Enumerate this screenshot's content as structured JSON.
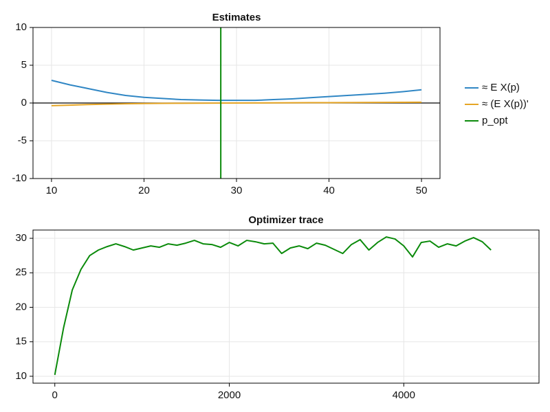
{
  "chart_data": [
    {
      "type": "line",
      "title": "Estimates",
      "x": [
        10,
        12,
        14,
        16,
        18,
        20,
        22,
        24,
        26,
        28,
        30,
        32,
        34,
        36,
        38,
        40,
        42,
        44,
        46,
        48,
        50
      ],
      "series": [
        {
          "name": "≈ E X(p)",
          "color": "#2f86c4",
          "values": [
            3.0,
            2.4,
            1.9,
            1.4,
            1.0,
            0.75,
            0.6,
            0.45,
            0.4,
            0.35,
            0.35,
            0.35,
            0.45,
            0.55,
            0.7,
            0.85,
            1.0,
            1.15,
            1.3,
            1.5,
            1.75
          ]
        },
        {
          "name": "≈ (E X(p))'",
          "color": "#e6a524",
          "values": [
            -0.35,
            -0.28,
            -0.2,
            -0.15,
            -0.1,
            -0.07,
            -0.05,
            -0.03,
            -0.02,
            -0.01,
            0,
            0.01,
            0.02,
            0.03,
            0.04,
            0.05,
            0.06,
            0.07,
            0.08,
            0.09,
            0.1
          ]
        },
        {
          "name": "p_opt",
          "color": "#0a8a0a",
          "xline": 28.3
        }
      ],
      "hline": 0,
      "xlim": [
        8,
        52
      ],
      "ylim": [
        -10,
        10
      ],
      "xticks": [
        10,
        20,
        30,
        40,
        50
      ],
      "yticks": [
        -10,
        -5,
        0,
        5,
        10
      ],
      "grid": true,
      "legend": "right"
    },
    {
      "type": "line",
      "title": "Optimizer trace",
      "x": [
        0,
        100,
        200,
        300,
        400,
        500,
        600,
        700,
        800,
        900,
        1000,
        1100,
        1200,
        1300,
        1400,
        1500,
        1600,
        1700,
        1800,
        1900,
        2000,
        2100,
        2200,
        2300,
        2400,
        2500,
        2600,
        2700,
        2800,
        2900,
        3000,
        3100,
        3200,
        3300,
        3400,
        3500,
        3600,
        3700,
        3800,
        3900,
        4000,
        4100,
        4200,
        4300,
        4400,
        4500,
        4600,
        4700,
        4800,
        4900,
        5000
      ],
      "series": [
        {
          "color": "#0a8a0a",
          "values": [
            10.2,
            17,
            22.5,
            25.5,
            27.5,
            28.3,
            28.8,
            29.2,
            28.8,
            28.3,
            28.6,
            28.9,
            28.7,
            29.2,
            29.0,
            29.3,
            29.7,
            29.2,
            29.1,
            28.7,
            29.4,
            28.9,
            29.7,
            29.5,
            29.2,
            29.3,
            27.8,
            28.6,
            28.9,
            28.5,
            29.3,
            29.0,
            28.4,
            27.8,
            29.1,
            29.8,
            28.3,
            29.4,
            30.2,
            29.9,
            28.9,
            27.3,
            29.4,
            29.6,
            28.7,
            29.2,
            28.9,
            29.6,
            30.1,
            29.5,
            28.3
          ]
        }
      ],
      "xlim": [
        -250,
        5550
      ],
      "ylim": [
        9,
        31.2
      ],
      "xticks": [
        0,
        2000,
        4000
      ],
      "yticks": [
        10,
        15,
        20,
        25,
        30
      ],
      "grid": true
    }
  ]
}
